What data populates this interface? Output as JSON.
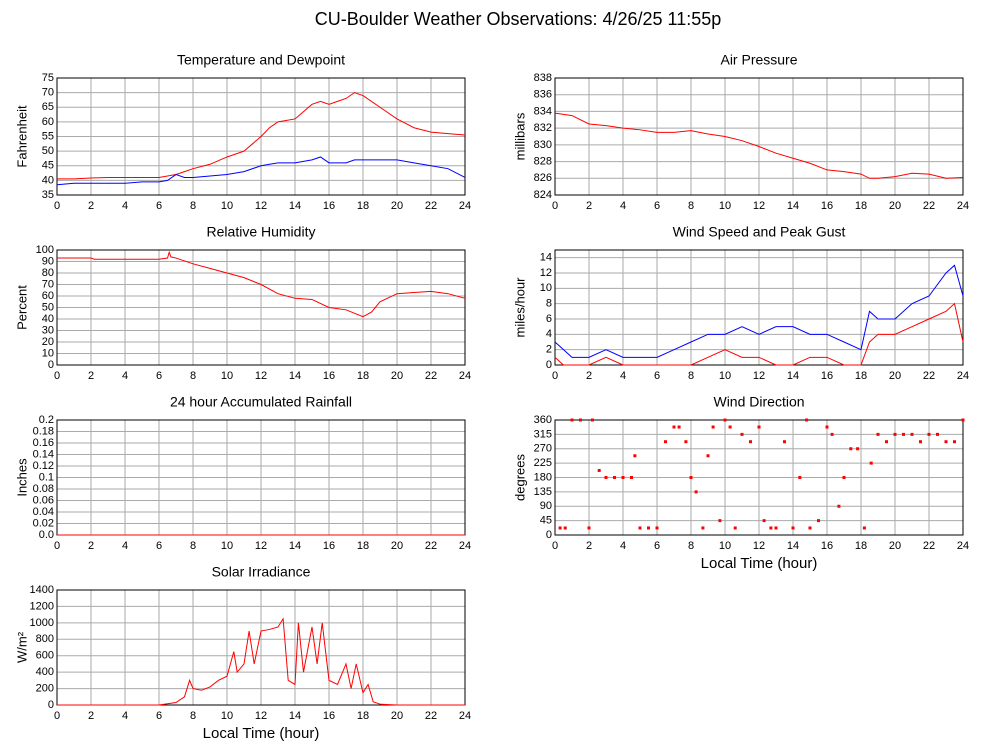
{
  "title": "CU-Boulder Weather Observations: 4/26/25 11:55p",
  "chart_data": [
    {
      "type": "line",
      "title": "Temperature and Dewpoint",
      "ylabel": "Fahrenheit",
      "x": [
        0,
        1,
        2,
        3,
        4,
        5,
        6,
        6.5,
        7,
        7.5,
        8,
        9,
        10,
        11,
        12,
        12.5,
        13,
        14,
        15,
        15.5,
        16,
        16.5,
        17,
        17.5,
        18,
        19,
        20,
        21,
        22,
        23,
        24
      ],
      "series": [
        {
          "color": "#ff0000",
          "values": [
            40.5,
            40.5,
            40.8,
            41,
            41,
            41,
            41,
            41.5,
            42,
            43,
            44,
            45.5,
            48,
            50,
            55,
            58,
            60,
            61,
            66,
            67,
            66,
            67,
            68,
            70,
            69,
            65,
            61,
            58,
            56.5,
            56,
            55.5
          ]
        },
        {
          "color": "#0000ff",
          "values": [
            38.5,
            39,
            39,
            39,
            39,
            39.5,
            39.5,
            40,
            42,
            41,
            41,
            41.5,
            42,
            43,
            45,
            45.5,
            46,
            46,
            47,
            48,
            46,
            46,
            46,
            47,
            47,
            47,
            47,
            46,
            45,
            44,
            41
          ]
        }
      ],
      "xlim": [
        0,
        24
      ],
      "xticks": [
        0,
        2,
        4,
        6,
        8,
        10,
        12,
        14,
        16,
        18,
        20,
        22,
        24
      ],
      "ylim": [
        35,
        75
      ],
      "yticks": [
        35,
        40,
        45,
        50,
        55,
        60,
        65,
        70,
        75
      ],
      "grid": true
    },
    {
      "type": "line",
      "title": "Air Pressure",
      "ylabel": "millibars",
      "x": [
        0,
        1,
        2,
        3,
        4,
        5,
        6,
        7,
        8,
        9,
        10,
        11,
        12,
        13,
        14,
        15,
        16,
        17,
        18,
        18.5,
        19,
        20,
        21,
        22,
        23,
        24
      ],
      "series": [
        {
          "color": "#ff0000",
          "values": [
            833.8,
            833.5,
            832.5,
            832.3,
            832,
            831.8,
            831.5,
            831.5,
            831.7,
            831.3,
            831,
            830.5,
            829.8,
            829,
            828.4,
            827.8,
            827,
            826.8,
            826.5,
            826,
            826,
            826.2,
            826.6,
            826.5,
            826,
            826.1
          ]
        }
      ],
      "xlim": [
        0,
        24
      ],
      "xticks": [
        0,
        2,
        4,
        6,
        8,
        10,
        12,
        14,
        16,
        18,
        20,
        22,
        24
      ],
      "ylim": [
        824,
        838
      ],
      "yticks": [
        824,
        826,
        828,
        830,
        832,
        834,
        836,
        838
      ],
      "grid": true
    },
    {
      "type": "line",
      "title": "Relative Humidity",
      "ylabel": "Percent",
      "x": [
        0,
        2,
        2.2,
        4,
        6,
        6.5,
        6.6,
        6.7,
        7,
        8,
        9,
        10,
        11,
        12,
        13,
        14,
        15,
        16,
        17,
        18,
        18.5,
        19,
        20,
        21,
        22,
        23,
        24
      ],
      "series": [
        {
          "color": "#ff0000",
          "values": [
            93,
            93,
            92,
            92,
            92,
            93,
            98,
            94,
            93,
            88,
            84,
            80,
            76,
            70,
            62,
            58,
            57,
            50,
            48,
            42,
            46,
            55,
            62,
            63,
            64,
            62,
            58
          ]
        }
      ],
      "xlim": [
        0,
        24
      ],
      "xticks": [
        0,
        2,
        4,
        6,
        8,
        10,
        12,
        14,
        16,
        18,
        20,
        22,
        24
      ],
      "ylim": [
        0,
        100
      ],
      "yticks": [
        0,
        10,
        20,
        30,
        40,
        50,
        60,
        70,
        80,
        90,
        100
      ],
      "grid": true
    },
    {
      "type": "line",
      "title": "Wind Speed and Peak Gust",
      "ylabel": "miles/hour",
      "x": [
        0,
        0.5,
        1,
        2,
        3,
        4,
        5,
        6,
        7,
        8,
        9,
        10,
        11,
        12,
        13,
        14,
        15,
        16,
        17,
        18,
        18.5,
        19,
        20,
        21,
        22,
        23,
        23.5,
        24
      ],
      "series": [
        {
          "color": "#0000ff",
          "values": [
            3,
            2,
            1,
            1,
            2,
            1,
            1,
            1,
            2,
            3,
            4,
            4,
            5,
            4,
            5,
            5,
            4,
            4,
            3,
            2,
            7,
            6,
            6,
            8,
            9,
            12,
            13,
            9
          ]
        },
        {
          "color": "#ff0000",
          "values": [
            1,
            0,
            0,
            0,
            1,
            0,
            0,
            0,
            0,
            0,
            1,
            2,
            1,
            1,
            0,
            0,
            1,
            1,
            0,
            0,
            3,
            4,
            4,
            5,
            6,
            7,
            8,
            3
          ]
        }
      ],
      "xlim": [
        0,
        24
      ],
      "xticks": [
        0,
        2,
        4,
        6,
        8,
        10,
        12,
        14,
        16,
        18,
        20,
        22,
        24
      ],
      "ylim": [
        0,
        15
      ],
      "yticks": [
        0,
        2,
        4,
        6,
        8,
        10,
        12,
        14
      ],
      "grid": true
    },
    {
      "type": "line",
      "title": "24 hour Accumulated Rainfall",
      "ylabel": "Inches",
      "x": [
        0,
        24
      ],
      "series": [
        {
          "color": "#ff0000",
          "values": [
            0,
            0
          ]
        }
      ],
      "xlim": [
        0,
        24
      ],
      "xticks": [
        0,
        2,
        4,
        6,
        8,
        10,
        12,
        14,
        16,
        18,
        20,
        22,
        24
      ],
      "ylim": [
        0,
        0.2
      ],
      "yticks": [
        {
          "value": 0,
          "label": "0.0"
        },
        0.02,
        0.04,
        0.06,
        0.08,
        0.1,
        0.12,
        0.14,
        0.16,
        0.18,
        0.2
      ],
      "grid": true
    },
    {
      "type": "scatter",
      "title": "Wind Direction",
      "ylabel": "degrees",
      "xlabel": "Local Time (hour)",
      "x": [
        0.3,
        0.6,
        1,
        1.5,
        2,
        2.2,
        2.6,
        3,
        3.5,
        4,
        4.5,
        4.7,
        5,
        5.5,
        6,
        6.5,
        7,
        7.3,
        7.7,
        8,
        8.3,
        8.7,
        9,
        9.3,
        9.7,
        10,
        10.3,
        10.6,
        11,
        11.5,
        12,
        12.3,
        12.7,
        13,
        13.5,
        14,
        14.4,
        14.8,
        15,
        15.5,
        16,
        16.3,
        16.7,
        17,
        17.4,
        17.8,
        18.2,
        18.6,
        19,
        19.5,
        20,
        20.5,
        21,
        21.5,
        22,
        22.5,
        23,
        23.5,
        24
      ],
      "series": [
        {
          "color": "#ff0000",
          "values": [
            22,
            22,
            360,
            360,
            22,
            360,
            202,
            180,
            180,
            180,
            180,
            248,
            22,
            22,
            22,
            292,
            338,
            338,
            292,
            180,
            135,
            22,
            248,
            338,
            45,
            360,
            338,
            22,
            315,
            292,
            338,
            45,
            22,
            22,
            292,
            22,
            180,
            360,
            22,
            45,
            338,
            315,
            90,
            180,
            270,
            270,
            22,
            225,
            315,
            292,
            315,
            315,
            315,
            292,
            315,
            315,
            292,
            292,
            360
          ]
        }
      ],
      "xlim": [
        0,
        24
      ],
      "xticks": [
        0,
        2,
        4,
        6,
        8,
        10,
        12,
        14,
        16,
        18,
        20,
        22,
        24
      ],
      "ylim": [
        0,
        360
      ],
      "yticks": [
        0,
        45,
        90,
        135,
        180,
        225,
        270,
        315,
        360
      ],
      "grid": true
    },
    {
      "type": "line",
      "title": "Solar Irradiance",
      "ylabel": "W/m²",
      "xlabel": "Local Time (hour)",
      "x": [
        0,
        6,
        7,
        7.5,
        7.8,
        8,
        8.5,
        9,
        9.5,
        10,
        10.4,
        10.6,
        11,
        11.3,
        11.6,
        12,
        12.5,
        13,
        13.3,
        13.6,
        14,
        14.2,
        14.5,
        15,
        15.3,
        15.6,
        16,
        16.5,
        17,
        17.3,
        17.6,
        18,
        18.3,
        18.6,
        19,
        20,
        24
      ],
      "series": [
        {
          "color": "#ff0000",
          "values": [
            0,
            0,
            30,
            100,
            300,
            200,
            180,
            220,
            300,
            350,
            650,
            400,
            500,
            900,
            500,
            900,
            920,
            950,
            1050,
            300,
            250,
            1000,
            400,
            950,
            500,
            1000,
            300,
            250,
            500,
            200,
            500,
            150,
            250,
            40,
            10,
            0,
            0
          ]
        }
      ],
      "xlim": [
        0,
        24
      ],
      "xticks": [
        0,
        2,
        4,
        6,
        8,
        10,
        12,
        14,
        16,
        18,
        20,
        22,
        24
      ],
      "ylim": [
        0,
        1400
      ],
      "yticks": [
        0,
        200,
        400,
        600,
        800,
        1000,
        1200,
        1400
      ],
      "grid": true
    }
  ]
}
